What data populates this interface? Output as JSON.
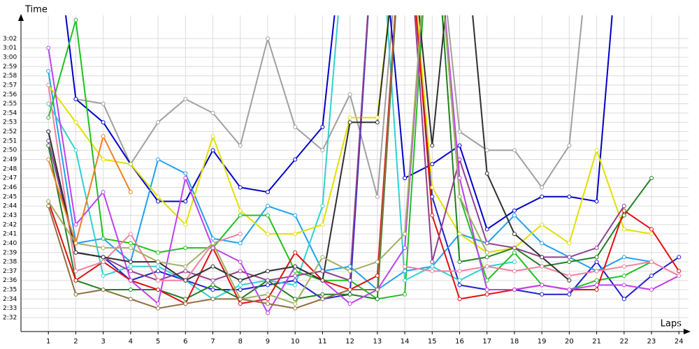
{
  "chart_data": {
    "type": "line",
    "y_label": "Time",
    "x_label": "Laps",
    "x": [
      1,
      2,
      3,
      4,
      5,
      6,
      7,
      8,
      9,
      10,
      11,
      12,
      13,
      14,
      15,
      16,
      17,
      18,
      19,
      20,
      21,
      22,
      23,
      24
    ],
    "xlim": [
      0,
      24.35
    ],
    "xticks": [
      1,
      2,
      3,
      4,
      5,
      6,
      7,
      8,
      9,
      10,
      11,
      12,
      13,
      14,
      15,
      16,
      17,
      18,
      19,
      20,
      21,
      22,
      23,
      24
    ],
    "ylim": [
      150.5,
      184.5
    ],
    "yticks": [
      {
        "value": 152,
        "label": "2:32"
      },
      {
        "value": 153,
        "label": "2:33"
      },
      {
        "value": 154,
        "label": "2:34"
      },
      {
        "value": 155,
        "label": "2:35"
      },
      {
        "value": 156,
        "label": "2:36"
      },
      {
        "value": 157,
        "label": "2:37"
      },
      {
        "value": 158,
        "label": "2:38"
      },
      {
        "value": 159,
        "label": "2:39"
      },
      {
        "value": 160,
        "label": "2:40"
      },
      {
        "value": 161,
        "label": "2:41"
      },
      {
        "value": 162,
        "label": "2:42"
      },
      {
        "value": 163,
        "label": "2:43"
      },
      {
        "value": 164,
        "label": "2:44"
      },
      {
        "value": 165,
        "label": "2:45"
      },
      {
        "value": 166,
        "label": "2:46"
      },
      {
        "value": 167,
        "label": "2:47"
      },
      {
        "value": 168,
        "label": "2:48"
      },
      {
        "value": 169,
        "label": "2:49"
      },
      {
        "value": 170,
        "label": "2:50"
      },
      {
        "value": 171,
        "label": "2:51"
      },
      {
        "value": 172,
        "label": "2:52"
      },
      {
        "value": 173,
        "label": "2:53"
      },
      {
        "value": 174,
        "label": "2:54"
      },
      {
        "value": 175,
        "label": "2:55"
      },
      {
        "value": 176,
        "label": "2:56"
      },
      {
        "value": 177,
        "label": "2:57"
      },
      {
        "value": 178,
        "label": "2:58"
      },
      {
        "value": 179,
        "label": "2:59"
      },
      {
        "value": 180,
        "label": "3:00"
      },
      {
        "value": 181,
        "label": "3:01"
      },
      {
        "value": 182,
        "label": "3:02"
      }
    ],
    "grid": true,
    "series": [
      {
        "color": "#a0a0a0",
        "values": [
          null,
          175.5,
          175,
          168.5,
          173,
          175.5,
          174,
          170.5,
          182,
          172.5,
          170,
          176,
          165,
          200,
          200,
          172,
          170,
          170,
          166,
          170.5,
          200,
          null,
          null,
          null
        ]
      },
      {
        "color": "#0000c8",
        "values": [
          200,
          175.5,
          173,
          168.5,
          164.5,
          164.5,
          170,
          166,
          165.5,
          169,
          172.5,
          200,
          200,
          167,
          168.5,
          170.5,
          161.5,
          163.5,
          165,
          165,
          164.5,
          200,
          null,
          null
        ]
      },
      {
        "color": "#2020d0",
        "values": [
          172,
          159,
          158.5,
          156,
          157,
          156,
          155,
          155,
          155.5,
          156,
          154,
          154.5,
          200,
          200,
          165,
          155.5,
          155,
          155,
          154.5,
          154.5,
          158,
          154,
          156.5,
          158.5
        ]
      },
      {
        "color": "#20a0f0",
        "values": [
          178.5,
          160,
          160.5,
          158,
          169,
          167.5,
          160.5,
          160,
          164,
          163,
          157,
          157.5,
          155,
          157,
          157.5,
          161,
          160,
          163,
          160,
          158.5,
          157,
          158.5,
          158,
          null
        ]
      },
      {
        "color": "#30d0d0",
        "values": [
          175,
          170,
          156.5,
          157.5,
          157.5,
          156,
          154,
          155.5,
          156,
          155.5,
          164,
          200,
          200,
          156,
          157.5,
          156,
          157.5,
          158,
          null,
          null,
          null,
          null,
          null,
          null
        ]
      },
      {
        "color": "#e0e000",
        "values": [
          177,
          173,
          169,
          168.5,
          165,
          162,
          171.5,
          163.5,
          161,
          161,
          162,
          173.5,
          173.5,
          200,
          166,
          161,
          159,
          159.5,
          162,
          160,
          170,
          161.5,
          161,
          null
        ]
      },
      {
        "color": "#20c020",
        "values": [
          173.5,
          184,
          160.5,
          160,
          159,
          159.5,
          159.5,
          163,
          163,
          157,
          156,
          156,
          154,
          154.5,
          200,
          165,
          156,
          159,
          155.5,
          155,
          156,
          156.5,
          158,
          null
        ]
      },
      {
        "color": "#208020",
        "values": [
          170.5,
          156,
          155,
          155,
          155,
          154,
          155.5,
          154,
          156,
          154,
          154.5,
          154.5,
          154,
          200,
          200,
          158,
          158.5,
          159.5,
          157.5,
          158,
          158.5,
          163,
          167,
          null
        ]
      },
      {
        "color": "#e01010",
        "values": [
          164.5,
          156,
          158,
          156,
          155,
          153.5,
          159.5,
          153.5,
          154,
          159,
          156,
          155,
          156.5,
          200,
          163,
          154,
          154.5,
          155,
          155.5,
          155,
          155,
          163.5,
          161.5,
          157
        ]
      },
      {
        "color": "#904090",
        "values": [
          171,
          159,
          158.5,
          157,
          156,
          157,
          156,
          157,
          156,
          156.5,
          157,
          156,
          200,
          200,
          158,
          169,
          160,
          159.5,
          158.5,
          158.5,
          159.5,
          164,
          null,
          null
        ]
      },
      {
        "color": "#c040f0",
        "values": [
          181,
          162,
          165.5,
          156,
          153.5,
          167,
          159.5,
          158,
          152.5,
          157.5,
          156,
          153.5,
          155,
          159.5,
          200,
          167,
          155,
          155,
          155.5,
          155,
          155.5,
          155.5,
          155,
          156.5
        ]
      },
      {
        "color": "#f080a0",
        "values": [
          177,
          157,
          158,
          161,
          156,
          156,
          160,
          161,
          null,
          null,
          null,
          null,
          null,
          157.5,
          157,
          157,
          157.5,
          157,
          157.5,
          156.5,
          157,
          157.5,
          158,
          156.5
        ]
      },
      {
        "color": "#303030",
        "values": [
          172,
          159,
          158.5,
          158,
          158,
          156,
          157.5,
          156,
          157,
          157.5,
          156,
          173,
          173,
          200,
          170.5,
          200,
          167.5,
          161,
          158.5,
          156,
          null,
          null,
          null,
          null
        ]
      },
      {
        "color": "#a0b060",
        "values": [
          164.5,
          160,
          159.5,
          159.5,
          158,
          157.5,
          160,
          154,
          154.5,
          153.5,
          158.5,
          157,
          158,
          161,
          200,
          165,
          159,
          null,
          null,
          null,
          null,
          null,
          null,
          null
        ]
      },
      {
        "color": "#907040",
        "values": [
          164,
          154.5,
          155,
          154,
          153,
          153.5,
          154,
          154,
          153.5,
          153,
          154,
          155,
          155,
          200,
          null,
          null,
          null,
          null,
          null,
          null,
          null,
          null,
          null,
          null
        ]
      },
      {
        "color": "#f08020",
        "values": [
          169,
          160,
          171.5,
          165.5,
          null,
          null,
          null,
          null,
          null,
          null,
          null,
          null,
          null,
          null,
          null,
          null,
          null,
          null,
          null,
          null,
          null,
          null,
          null,
          null
        ]
      }
    ]
  }
}
